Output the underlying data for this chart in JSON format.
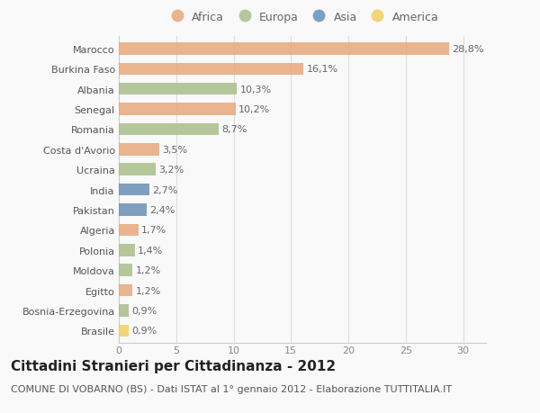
{
  "categories": [
    "Brasile",
    "Bosnia-Erzegovina",
    "Egitto",
    "Moldova",
    "Polonia",
    "Algeria",
    "Pakistan",
    "India",
    "Ucraina",
    "Costa d'Avorio",
    "Romania",
    "Senegal",
    "Albania",
    "Burkina Faso",
    "Marocco"
  ],
  "values": [
    0.9,
    0.9,
    1.2,
    1.2,
    1.4,
    1.7,
    2.4,
    2.7,
    3.2,
    3.5,
    8.7,
    10.2,
    10.3,
    16.1,
    28.8
  ],
  "labels": [
    "0,9%",
    "0,9%",
    "1,2%",
    "1,2%",
    "1,4%",
    "1,7%",
    "2,4%",
    "2,7%",
    "3,2%",
    "3,5%",
    "8,7%",
    "10,2%",
    "10,3%",
    "16,1%",
    "28,8%"
  ],
  "continent": [
    "America",
    "Europa",
    "Africa",
    "Europa",
    "Europa",
    "Africa",
    "Asia",
    "Asia",
    "Europa",
    "Africa",
    "Europa",
    "Africa",
    "Europa",
    "Africa",
    "Africa"
  ],
  "colors": {
    "Africa": "#E8A87C",
    "Europa": "#AABF8A",
    "Asia": "#6A8FB5",
    "America": "#F0D060"
  },
  "legend_order": [
    "Africa",
    "Europa",
    "Asia",
    "America"
  ],
  "xlim": [
    0,
    32
  ],
  "xticks": [
    0,
    5,
    10,
    15,
    20,
    25,
    30
  ],
  "title": "Cittadini Stranieri per Cittadinanza - 2012",
  "subtitle": "COMUNE DI VOBARNO (BS) - Dati ISTAT al 1° gennaio 2012 - Elaborazione TUTTITALIA.IT",
  "background_color": "#f9f9f9",
  "bar_height": 0.6,
  "title_fontsize": 11,
  "subtitle_fontsize": 8,
  "label_fontsize": 8,
  "tick_fontsize": 8,
  "legend_fontsize": 9
}
